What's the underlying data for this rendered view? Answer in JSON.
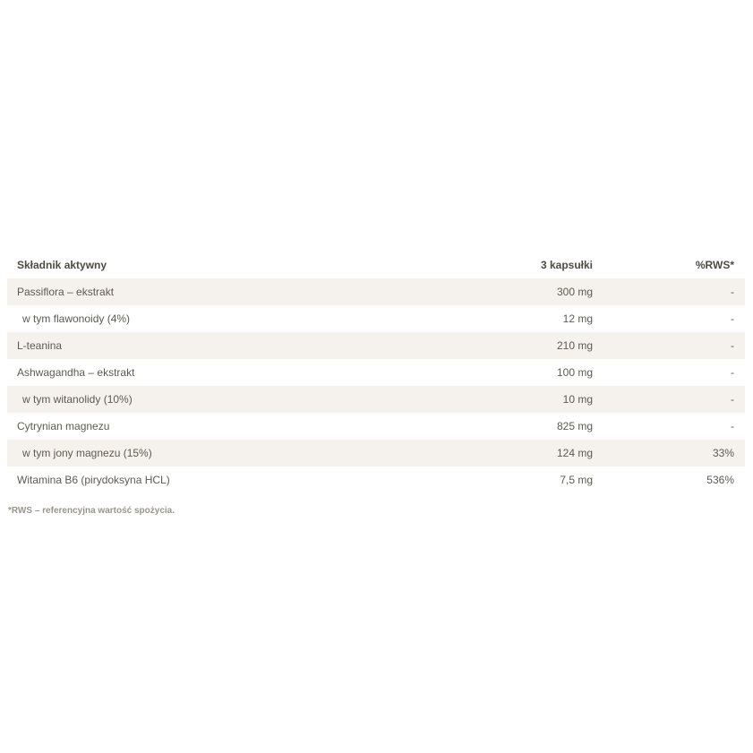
{
  "table": {
    "headers": {
      "ingredient": "Składnik aktywny",
      "amount": "3 kapsułki",
      "rws": "%RWS*"
    },
    "rows": [
      {
        "name": "Passiflora – ekstrakt",
        "amount": "300 mg",
        "rws": "-",
        "indented": false
      },
      {
        "name": "w tym flawonoidy (4%)",
        "amount": "12 mg",
        "rws": "-",
        "indented": true
      },
      {
        "name": "L-teanina",
        "amount": "210 mg",
        "rws": "-",
        "indented": false
      },
      {
        "name": "Ashwagandha – ekstrakt",
        "amount": "100 mg",
        "rws": "-",
        "indented": false
      },
      {
        "name": "w tym witanolidy (10%)",
        "amount": "10 mg",
        "rws": "-",
        "indented": true
      },
      {
        "name": "Cytrynian magnezu",
        "amount": "825 mg",
        "rws": "-",
        "indented": false
      },
      {
        "name": "w tym jony magnezu (15%)",
        "amount": "124 mg",
        "rws": "33%",
        "indented": true
      },
      {
        "name": "Witamina B6 (pirydoksyna HCL)",
        "amount": "7,5 mg",
        "rws": "536%",
        "indented": false
      }
    ]
  },
  "footnote": "*RWS – referencyjna wartość spożycia.",
  "colors": {
    "row_alt_background": "#f5f1ec",
    "text": "#5e5a52",
    "footnote": "#9a958c"
  }
}
